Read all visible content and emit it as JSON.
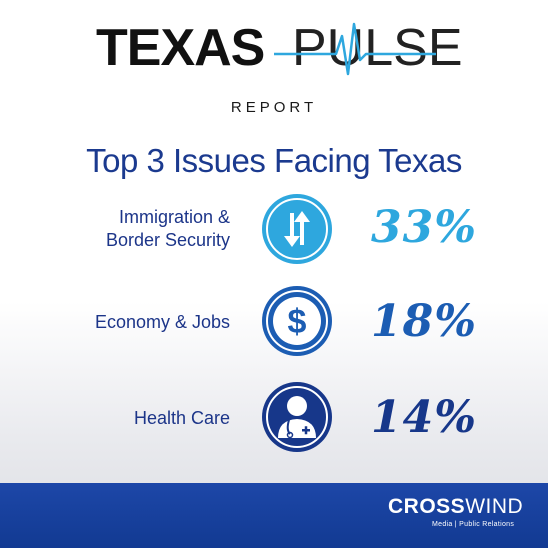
{
  "header": {
    "logo_bold": "TEXAS",
    "logo_light": "PULSE",
    "logo_suffix": "REPORT"
  },
  "title": "Top 3 Issues Facing Texas",
  "issues": [
    {
      "label_line1": "Immigration &",
      "label_line2": "Border Security",
      "percent": "33%",
      "icon": "up-down-arrows-icon",
      "color": "#2ea7de"
    },
    {
      "label_line1": "Economy & Jobs",
      "label_line2": "",
      "percent": "18%",
      "icon": "dollar-sign-icon",
      "color": "#1c5db3"
    },
    {
      "label_line1": "Health Care",
      "label_line2": "",
      "percent": "14%",
      "icon": "doctor-icon",
      "color": "#17378a"
    }
  ],
  "footer": {
    "brand_bold": "CROSS",
    "brand_light": "WIND",
    "tagline": "Media  |  Public Relations"
  },
  "colors": {
    "navy": "#1c3589",
    "light_blue": "#2ea7de",
    "footer_blue": "#1d47a8"
  }
}
